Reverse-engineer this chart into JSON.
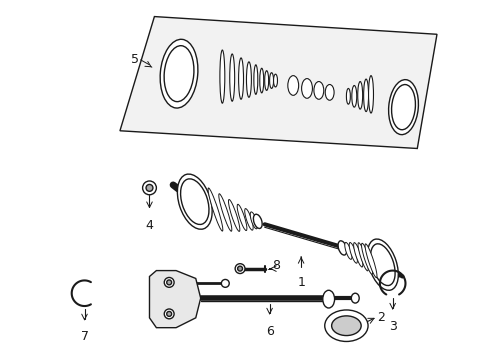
{
  "background_color": "#ffffff",
  "line_color": "#1a1a1a",
  "line_width": 1.0,
  "fig_width": 4.89,
  "fig_height": 3.6,
  "dpi": 100,
  "box_fill": "#f2f2f2",
  "box_shadow": "#e0e0e0"
}
